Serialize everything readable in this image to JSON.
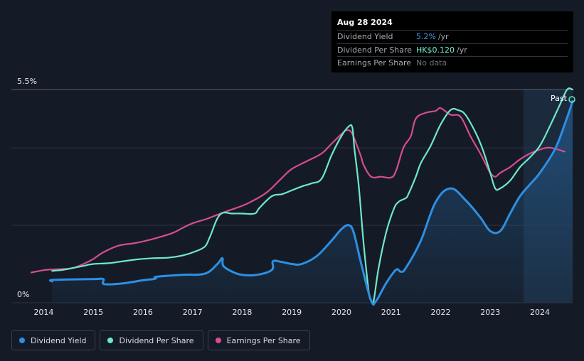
{
  "tooltip": {
    "date": "Aug 28 2024",
    "rows": [
      {
        "label": "Dividend Yield",
        "value": "5.2%",
        "unit": "/yr"
      },
      {
        "label": "Dividend Per Share",
        "value": "HK$0.120",
        "unit": "/yr"
      },
      {
        "label": "Earnings Per Share",
        "value": "No data",
        "unit": ""
      }
    ]
  },
  "past_label": "Past",
  "legend": [
    {
      "label": "Dividend Yield",
      "color": "#2d8fe3"
    },
    {
      "label": "Dividend Per Share",
      "color": "#6ee8c9"
    },
    {
      "label": "Earnings Per Share",
      "color": "#d44d93"
    }
  ],
  "chart_data": {
    "type": "line",
    "title": "",
    "xlabel": "",
    "ylabel": "",
    "xlim": [
      2013.75,
      2024.66
    ],
    "ylim": [
      0,
      5.5
    ],
    "y_tick_labels": [
      "0%",
      "5.5%"
    ],
    "x_ticks": [
      2014,
      2015,
      2016,
      2017,
      2018,
      2019,
      2020,
      2021,
      2022,
      2023,
      2024
    ],
    "forecast_start": 2023.67,
    "series": [
      {
        "name": "Dividend Yield",
        "color": "#2d8fe3",
        "x": [
          2014.17,
          2014.2,
          2015.0,
          2015.2,
          2015.22,
          2015.6,
          2016.0,
          2016.25,
          2016.27,
          2016.8,
          2017.25,
          2017.5,
          2017.6,
          2017.62,
          2017.8,
          2018.0,
          2018.3,
          2018.6,
          2018.62,
          2018.8,
          2019.0,
          2019.2,
          2019.5,
          2019.8,
          2020.0,
          2020.15,
          2020.25,
          2020.4,
          2020.6,
          2020.7,
          2020.9,
          2021.1,
          2021.2,
          2021.3,
          2021.6,
          2021.9,
          2022.2,
          2022.5,
          2022.8,
          2023.0,
          2023.2,
          2023.4,
          2023.6,
          2023.8,
          2024.0,
          2024.3,
          2024.5,
          2024.66
        ],
        "values": [
          0.55,
          0.59,
          0.61,
          0.61,
          0.48,
          0.5,
          0.58,
          0.62,
          0.67,
          0.72,
          0.75,
          1.0,
          1.15,
          0.95,
          0.8,
          0.72,
          0.72,
          0.85,
          1.07,
          1.05,
          1.0,
          1.0,
          1.2,
          1.6,
          1.9,
          2.0,
          1.8,
          1.0,
          0.05,
          0.05,
          0.5,
          0.85,
          0.8,
          0.9,
          1.6,
          2.6,
          2.95,
          2.65,
          2.2,
          1.85,
          1.85,
          2.3,
          2.75,
          3.05,
          3.35,
          3.95,
          4.6,
          5.2
        ]
      },
      {
        "name": "Dividend Per Share",
        "color": "#6ee8c9",
        "x": [
          2014.17,
          2014.4,
          2014.6,
          2014.8,
          2015.0,
          2015.3,
          2015.6,
          2015.9,
          2016.2,
          2016.5,
          2016.8,
          2017.05,
          2017.25,
          2017.35,
          2017.55,
          2017.8,
          2018.0,
          2018.25,
          2018.35,
          2018.6,
          2018.8,
          2019.0,
          2019.2,
          2019.4,
          2019.6,
          2019.8,
          2020.0,
          2020.15,
          2020.22,
          2020.26,
          2020.35,
          2020.45,
          2020.55,
          2020.6,
          2020.65,
          2020.75,
          2020.9,
          2021.05,
          2021.15,
          2021.3,
          2021.35,
          2021.5,
          2021.6,
          2021.8,
          2022.0,
          2022.2,
          2022.35,
          2022.5,
          2022.7,
          2022.85,
          2023.0,
          2023.1,
          2023.2,
          2023.4,
          2023.6,
          2023.8,
          2024.0,
          2024.2,
          2024.4,
          2024.55,
          2024.66
        ],
        "values": [
          0.82,
          0.85,
          0.9,
          0.95,
          1.0,
          1.02,
          1.07,
          1.12,
          1.15,
          1.16,
          1.22,
          1.32,
          1.45,
          1.7,
          2.27,
          2.3,
          2.3,
          2.3,
          2.45,
          2.75,
          2.8,
          2.9,
          3.0,
          3.08,
          3.2,
          3.8,
          4.3,
          4.55,
          4.52,
          4.0,
          3.0,
          1.5,
          0.3,
          0.05,
          0.05,
          0.9,
          1.8,
          2.4,
          2.6,
          2.7,
          2.8,
          3.25,
          3.6,
          4.05,
          4.6,
          4.97,
          4.97,
          4.85,
          4.4,
          3.95,
          3.35,
          2.95,
          2.95,
          3.15,
          3.5,
          3.75,
          4.05,
          4.55,
          5.1,
          5.5,
          5.5
        ]
      },
      {
        "name": "Earnings Per Share",
        "color": "#d44d93",
        "x": [
          2013.75,
          2014.0,
          2014.2,
          2014.4,
          2014.6,
          2014.8,
          2015.0,
          2015.2,
          2015.5,
          2015.8,
          2016.0,
          2016.3,
          2016.6,
          2016.8,
          2017.0,
          2017.3,
          2017.6,
          2018.0,
          2018.2,
          2018.5,
          2018.8,
          2019.0,
          2019.3,
          2019.6,
          2019.8,
          2020.0,
          2020.1,
          2020.2,
          2020.3,
          2020.4,
          2020.45,
          2020.6,
          2020.8,
          2021.0,
          2021.1,
          2021.25,
          2021.4,
          2021.5,
          2021.7,
          2021.9,
          2022.0,
          2022.2,
          2022.4,
          2022.6,
          2022.8,
          2022.9,
          2023.0,
          2023.1,
          2023.2,
          2023.4,
          2023.6,
          2023.8,
          2024.0,
          2024.2,
          2024.5
        ],
        "values": [
          0.78,
          0.84,
          0.86,
          0.87,
          0.9,
          1.0,
          1.13,
          1.3,
          1.47,
          1.53,
          1.58,
          1.68,
          1.8,
          1.93,
          2.05,
          2.17,
          2.32,
          2.5,
          2.62,
          2.85,
          3.22,
          3.45,
          3.65,
          3.85,
          4.1,
          4.35,
          4.45,
          4.4,
          4.1,
          3.75,
          3.55,
          3.25,
          3.25,
          3.23,
          3.4,
          4.0,
          4.3,
          4.75,
          4.9,
          4.95,
          5.02,
          4.85,
          4.8,
          4.3,
          3.85,
          3.6,
          3.35,
          3.25,
          3.35,
          3.5,
          3.7,
          3.85,
          3.95,
          4.0,
          3.9
        ]
      }
    ]
  }
}
